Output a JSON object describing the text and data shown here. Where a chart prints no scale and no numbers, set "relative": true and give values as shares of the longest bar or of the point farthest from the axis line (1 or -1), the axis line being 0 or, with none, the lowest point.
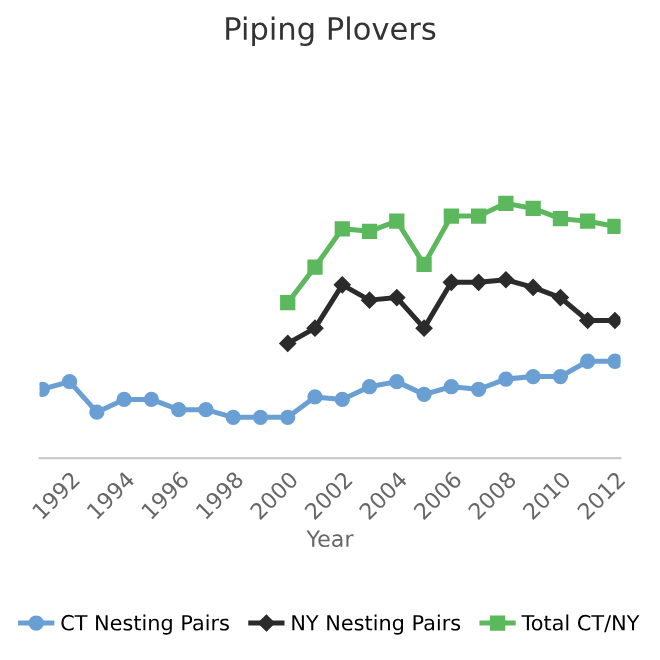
{
  "chart_data": {
    "type": "line",
    "title": "Piping Plovers",
    "xlabel": "Year",
    "relative": true,
    "x": [
      1991,
      1992,
      1993,
      1994,
      1995,
      1996,
      1997,
      1998,
      1999,
      2000,
      2001,
      2002,
      2003,
      2004,
      2005,
      2006,
      2007,
      2008,
      2009,
      2010,
      2011,
      2012
    ],
    "xlim": [
      1990.9,
      2012.2
    ],
    "xticks": [
      1992,
      1994,
      1996,
      1998,
      2000,
      2002,
      2004,
      2006,
      2008,
      2010,
      2012
    ],
    "series": [
      {
        "name": "CT Nesting Pairs",
        "color": "#6a9fd4",
        "marker": "circle",
        "values": [
          0.27,
          0.3,
          0.18,
          0.23,
          0.23,
          0.19,
          0.19,
          0.16,
          0.16,
          0.16,
          0.24,
          0.23,
          0.28,
          0.3,
          0.25,
          0.28,
          0.27,
          0.31,
          0.32,
          0.32,
          0.38,
          0.38
        ]
      },
      {
        "name": "NY Nesting Pairs",
        "color": "#2b2b2b",
        "marker": "diamond",
        "values": [
          null,
          null,
          null,
          null,
          null,
          null,
          null,
          null,
          null,
          0.45,
          0.51,
          0.68,
          0.62,
          0.63,
          0.51,
          0.69,
          0.69,
          0.7,
          0.67,
          0.63,
          0.54,
          0.54
        ]
      },
      {
        "name": "Total CT/NY",
        "color": "#5cb85c",
        "marker": "square",
        "values": [
          null,
          null,
          null,
          null,
          null,
          null,
          null,
          null,
          null,
          0.61,
          0.75,
          0.9,
          0.89,
          0.93,
          0.76,
          0.95,
          0.95,
          1,
          0.98,
          0.94,
          0.93,
          0.91
        ]
      }
    ],
    "legend": "bottom",
    "line_style": "solid"
  }
}
